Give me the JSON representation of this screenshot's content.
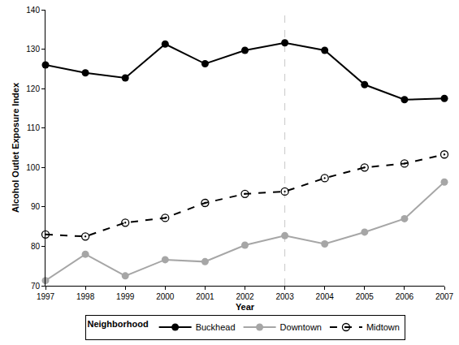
{
  "chart_data": {
    "type": "line",
    "x_label": "Year",
    "y_label": "Alcohol Outlet Exposure Index",
    "x": [
      1997,
      1998,
      1999,
      2000,
      2001,
      2002,
      2003,
      2004,
      2005,
      2006,
      2007
    ],
    "xlim": [
      1997,
      2007
    ],
    "xticks": [
      1997,
      1998,
      1999,
      2000,
      2001,
      2002,
      2003,
      2004,
      2005,
      2006,
      2007
    ],
    "ylim": [
      70,
      140
    ],
    "yticks": [
      70,
      80,
      90,
      100,
      110,
      120,
      130,
      140
    ],
    "grid": false,
    "legend": "bottom",
    "legend_title": "Neighborhood",
    "vlines": [
      2003
    ],
    "series": [
      {
        "name": "Buckhead",
        "color": "#000000",
        "marker": "circle",
        "line_style": "solid",
        "values": [
          126,
          124,
          122.7,
          131.3,
          126.3,
          129.7,
          131.6,
          129.7,
          121,
          117.2,
          117.5
        ]
      },
      {
        "name": "Downtown",
        "color": "#a6a6a6",
        "marker": "circle",
        "line_style": "solid",
        "values": [
          71.3,
          78,
          72.5,
          76.6,
          76.1,
          80.3,
          82.7,
          80.6,
          83.6,
          87,
          96.3
        ]
      },
      {
        "name": "Midtown",
        "color": "#000000",
        "marker": "circle-open-dot",
        "line_style": "dashed",
        "values": [
          83,
          82.5,
          86,
          87.2,
          91,
          93.3,
          93.9,
          97.3,
          100,
          101,
          103.3
        ]
      }
    ]
  }
}
